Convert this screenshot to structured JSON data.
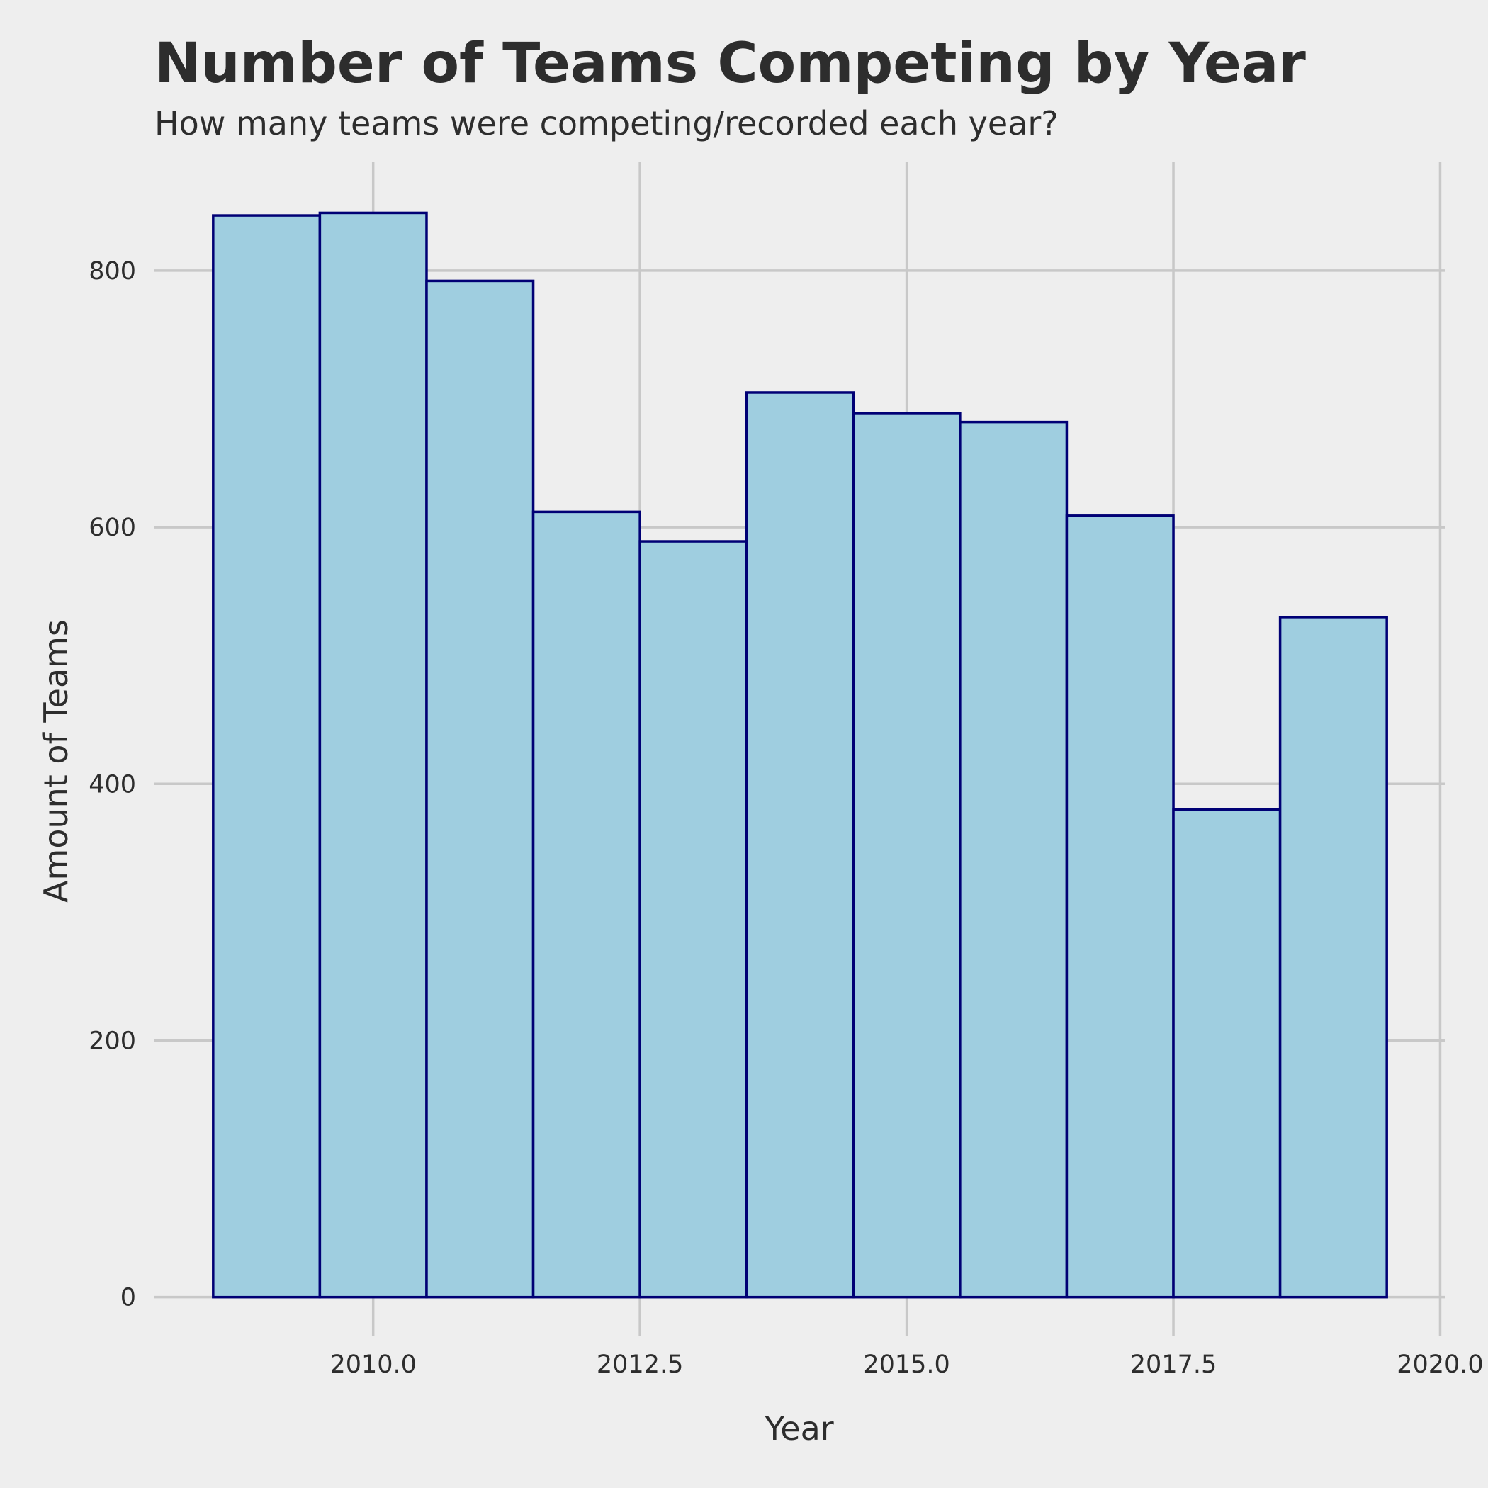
{
  "chart_data": {
    "type": "bar",
    "title": "Number of Teams Competing by Year",
    "subtitle": "How many teams were competing/recorded each year?",
    "xlabel": "Year",
    "ylabel": "Amount of Teams",
    "x": [
      2009,
      2010,
      2011,
      2012,
      2013,
      2014,
      2015,
      2016,
      2017,
      2018,
      2019
    ],
    "values": [
      843,
      845,
      792,
      612,
      589,
      705,
      689,
      682,
      609,
      380,
      530
    ],
    "bin_width": 1,
    "xlim": [
      2007.95,
      2020.05
    ],
    "ylim": [
      -30,
      885
    ],
    "x_ticks": [
      2010.0,
      2012.5,
      2015.0,
      2017.5,
      2020.0
    ],
    "x_tick_labels": [
      "2010.0",
      "2012.5",
      "2015.0",
      "2017.5",
      "2020.0"
    ],
    "y_ticks": [
      0,
      200,
      400,
      600,
      800
    ],
    "y_tick_labels": [
      "0",
      "200",
      "400",
      "600",
      "800"
    ],
    "grid": true,
    "legend": "none",
    "colors": {
      "background": "#eeeeee",
      "bar_fill": "#9fcee0",
      "bar_edge": "#000075",
      "grid": "#c8c8c8",
      "text": "#2d2d2d"
    }
  }
}
